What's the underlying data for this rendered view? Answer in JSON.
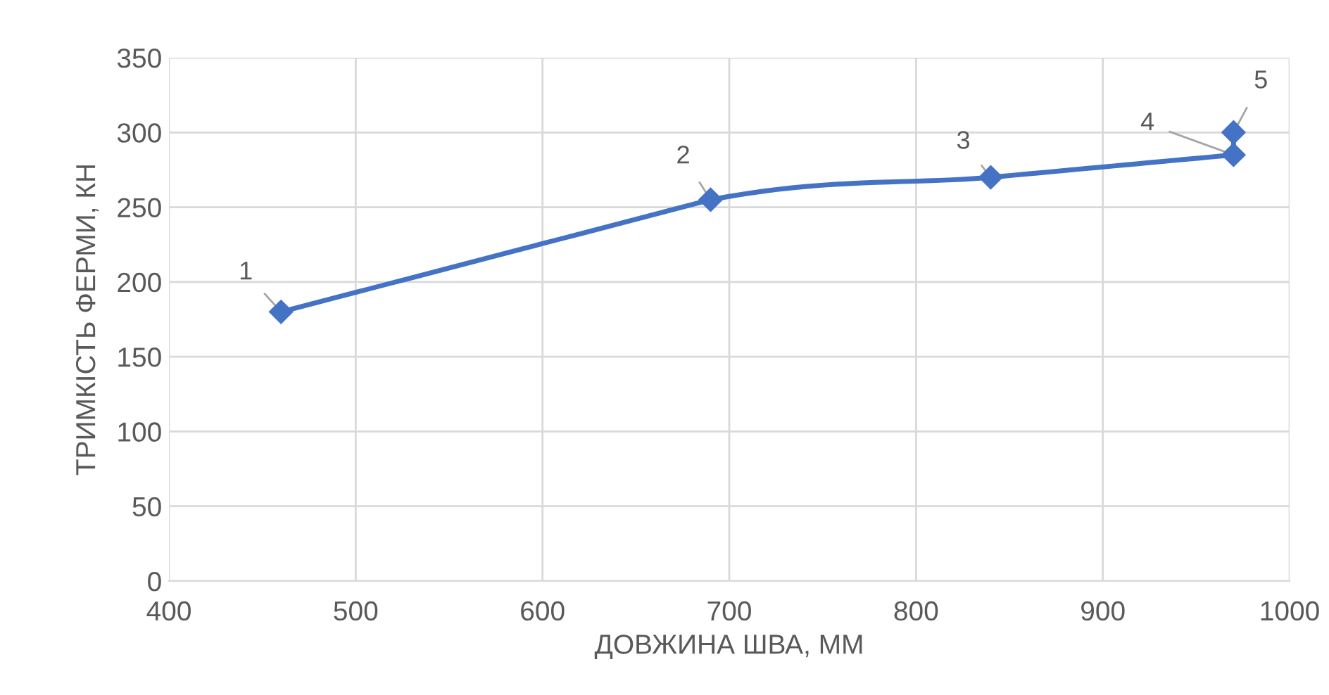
{
  "chart_data": {
    "type": "line",
    "xlabel": "ДОВЖИНА ШВА, ММ",
    "ylabel": "ТРИМКІСТЬ ФЕРМИ, КН",
    "x": [
      460,
      690,
      840,
      970,
      970
    ],
    "series": [
      {
        "color": "#4472c4",
        "values": [
          180,
          255,
          270,
          285,
          300
        ]
      }
    ],
    "xlim": [
      400,
      1000
    ],
    "xticks": [
      400,
      500,
      600,
      700,
      800,
      900,
      1000
    ],
    "ylim": [
      0,
      350
    ],
    "yticks": [
      0,
      50,
      100,
      150,
      200,
      250,
      300,
      350
    ],
    "grid": true,
    "marker": "diamond",
    "line_style": "solid",
    "legend": false,
    "annotations": [
      {
        "text": "1",
        "x": 460,
        "y": 180
      },
      {
        "text": "2",
        "x": 690,
        "y": 255
      },
      {
        "text": "3",
        "x": 840,
        "y": 270
      },
      {
        "text": "4",
        "x": 970,
        "y": 285
      },
      {
        "text": "5",
        "x": 970,
        "y": 300
      }
    ]
  }
}
